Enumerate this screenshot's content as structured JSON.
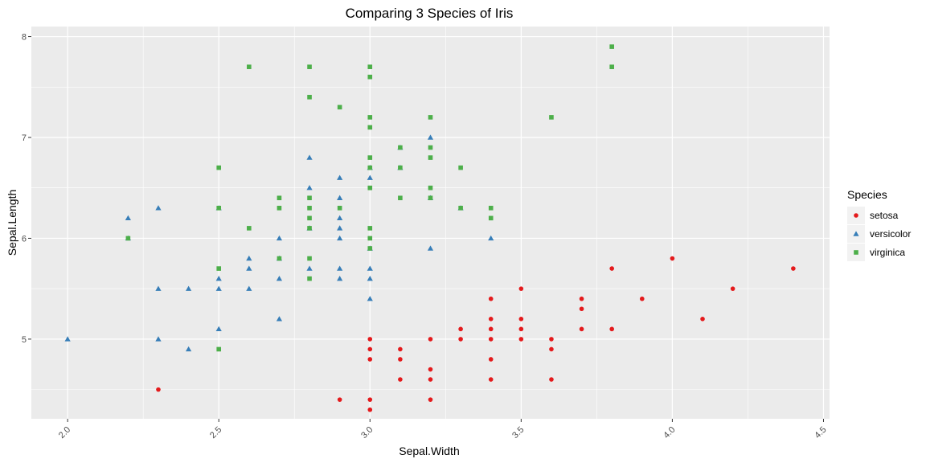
{
  "chart_data": {
    "type": "scatter",
    "title": "Comparing 3 Species of Iris",
    "xlabel": "Sepal.Width",
    "ylabel": "Sepal.Length",
    "xlim": [
      1.88,
      4.52
    ],
    "ylim": [
      4.21,
      8.1
    ],
    "x_ticks": [
      2.0,
      2.5,
      3.0,
      3.5,
      4.0,
      4.5
    ],
    "x_tick_labels": [
      "2.0",
      "2.5",
      "3.0",
      "3.5",
      "4.0",
      "4.5"
    ],
    "y_ticks": [
      5,
      6,
      7,
      8
    ],
    "y_tick_labels": [
      "5",
      "6",
      "7",
      "8"
    ],
    "grid": true,
    "x_tick_label_rotation": "angled",
    "legend": {
      "title": "Species",
      "position": "right"
    },
    "colors": {
      "panel": "#ebebeb",
      "grid": "#ffffff"
    },
    "series": [
      {
        "name": "setosa",
        "marker": "circle",
        "color": "#e41a1c",
        "points": [
          [
            2.3,
            4.5
          ],
          [
            2.9,
            4.4
          ],
          [
            3.0,
            4.4
          ],
          [
            3.0,
            4.3
          ],
          [
            3.0,
            5.0
          ],
          [
            3.0,
            4.9
          ],
          [
            3.0,
            4.8
          ],
          [
            3.1,
            4.9
          ],
          [
            3.1,
            4.8
          ],
          [
            3.1,
            4.6
          ],
          [
            3.2,
            5.0
          ],
          [
            3.2,
            4.7
          ],
          [
            3.2,
            4.6
          ],
          [
            3.2,
            4.4
          ],
          [
            3.3,
            5.1
          ],
          [
            3.3,
            5.0
          ],
          [
            3.4,
            5.4
          ],
          [
            3.4,
            5.2
          ],
          [
            3.4,
            5.1
          ],
          [
            3.4,
            5.0
          ],
          [
            3.4,
            4.8
          ],
          [
            3.4,
            4.6
          ],
          [
            3.5,
            5.5
          ],
          [
            3.5,
            5.2
          ],
          [
            3.5,
            5.1
          ],
          [
            3.5,
            5.0
          ],
          [
            3.6,
            5.0
          ],
          [
            3.6,
            4.9
          ],
          [
            3.6,
            4.6
          ],
          [
            3.7,
            5.4
          ],
          [
            3.7,
            5.3
          ],
          [
            3.7,
            5.1
          ],
          [
            3.8,
            5.7
          ],
          [
            3.8,
            5.1
          ],
          [
            3.9,
            5.4
          ],
          [
            4.0,
            5.8
          ],
          [
            4.1,
            5.2
          ],
          [
            4.2,
            5.5
          ],
          [
            4.4,
            5.7
          ]
        ]
      },
      {
        "name": "versicolor",
        "marker": "triangle",
        "color": "#377eb8",
        "points": [
          [
            2.0,
            5.0
          ],
          [
            2.2,
            6.2
          ],
          [
            2.2,
            6.0
          ],
          [
            2.3,
            6.3
          ],
          [
            2.3,
            5.5
          ],
          [
            2.3,
            5.0
          ],
          [
            2.4,
            5.5
          ],
          [
            2.4,
            4.9
          ],
          [
            2.5,
            6.3
          ],
          [
            2.5,
            5.6
          ],
          [
            2.5,
            5.5
          ],
          [
            2.5,
            5.1
          ],
          [
            2.6,
            5.8
          ],
          [
            2.6,
            5.7
          ],
          [
            2.6,
            5.5
          ],
          [
            2.7,
            6.0
          ],
          [
            2.7,
            5.8
          ],
          [
            2.7,
            5.6
          ],
          [
            2.7,
            5.2
          ],
          [
            2.8,
            6.8
          ],
          [
            2.8,
            6.5
          ],
          [
            2.8,
            6.1
          ],
          [
            2.8,
            5.7
          ],
          [
            2.9,
            6.6
          ],
          [
            2.9,
            6.4
          ],
          [
            2.9,
            6.2
          ],
          [
            2.9,
            6.1
          ],
          [
            2.9,
            6.0
          ],
          [
            2.9,
            5.7
          ],
          [
            2.9,
            5.6
          ],
          [
            3.0,
            6.7
          ],
          [
            3.0,
            6.6
          ],
          [
            3.0,
            5.9
          ],
          [
            3.0,
            5.7
          ],
          [
            3.0,
            5.6
          ],
          [
            3.0,
            5.4
          ],
          [
            3.1,
            6.9
          ],
          [
            3.1,
            6.7
          ],
          [
            3.2,
            7.0
          ],
          [
            3.2,
            6.4
          ],
          [
            3.2,
            5.9
          ],
          [
            3.3,
            6.3
          ],
          [
            3.4,
            6.0
          ]
        ]
      },
      {
        "name": "virginica",
        "marker": "square",
        "color": "#4daf4a",
        "points": [
          [
            2.2,
            6.0
          ],
          [
            2.5,
            6.7
          ],
          [
            2.5,
            6.3
          ],
          [
            2.5,
            5.7
          ],
          [
            2.5,
            4.9
          ],
          [
            2.6,
            7.7
          ],
          [
            2.6,
            6.1
          ],
          [
            2.7,
            6.4
          ],
          [
            2.7,
            6.3
          ],
          [
            2.7,
            5.8
          ],
          [
            2.8,
            7.7
          ],
          [
            2.8,
            7.4
          ],
          [
            2.8,
            6.4
          ],
          [
            2.8,
            6.3
          ],
          [
            2.8,
            6.2
          ],
          [
            2.8,
            6.1
          ],
          [
            2.8,
            5.8
          ],
          [
            2.8,
            5.6
          ],
          [
            2.9,
            7.3
          ],
          [
            2.9,
            6.3
          ],
          [
            3.0,
            7.7
          ],
          [
            3.0,
            7.6
          ],
          [
            3.0,
            7.2
          ],
          [
            3.0,
            7.1
          ],
          [
            3.0,
            6.8
          ],
          [
            3.0,
            6.7
          ],
          [
            3.0,
            6.5
          ],
          [
            3.0,
            6.1
          ],
          [
            3.0,
            6.0
          ],
          [
            3.0,
            5.9
          ],
          [
            3.1,
            6.9
          ],
          [
            3.1,
            6.7
          ],
          [
            3.1,
            6.4
          ],
          [
            3.2,
            7.2
          ],
          [
            3.2,
            6.9
          ],
          [
            3.2,
            6.8
          ],
          [
            3.2,
            6.5
          ],
          [
            3.2,
            6.4
          ],
          [
            3.3,
            6.7
          ],
          [
            3.3,
            6.3
          ],
          [
            3.4,
            6.3
          ],
          [
            3.4,
            6.2
          ],
          [
            3.6,
            7.2
          ],
          [
            3.8,
            7.9
          ],
          [
            3.8,
            7.7
          ]
        ]
      }
    ]
  }
}
